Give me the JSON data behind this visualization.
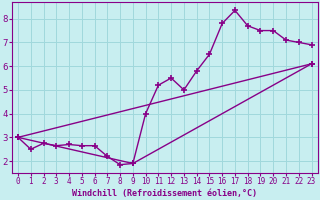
{
  "xlabel": "Windchill (Refroidissement éolien,°C)",
  "xlim": [
    -0.5,
    23.5
  ],
  "ylim": [
    1.5,
    8.7
  ],
  "xticks": [
    0,
    1,
    2,
    3,
    4,
    5,
    6,
    7,
    8,
    9,
    10,
    11,
    12,
    13,
    14,
    15,
    16,
    17,
    18,
    19,
    20,
    21,
    22,
    23
  ],
  "yticks": [
    2,
    3,
    4,
    5,
    6,
    7,
    8
  ],
  "bg_color": "#c8eef0",
  "line_color": "#880088",
  "grid_color": "#a0d8dc",
  "line1_x": [
    0,
    1,
    2,
    3,
    4,
    5,
    6,
    7,
    8,
    9,
    10,
    11,
    12,
    13,
    14,
    15,
    16,
    17,
    18,
    19,
    20,
    21,
    22,
    23
  ],
  "line1_y": [
    3.0,
    2.5,
    2.75,
    2.65,
    2.7,
    2.65,
    2.65,
    2.2,
    1.85,
    1.9,
    4.0,
    5.2,
    5.5,
    5.0,
    5.8,
    6.5,
    7.8,
    8.35,
    7.7,
    7.5,
    7.5,
    7.1,
    7.0,
    6.9
  ],
  "line2_x": [
    0,
    23
  ],
  "line2_y": [
    3.0,
    6.1
  ],
  "line3_x": [
    0,
    9,
    23
  ],
  "line3_y": [
    3.0,
    1.9,
    6.1
  ],
  "xlabel_fontsize": 6.0,
  "tick_fontsize_x": 5.5,
  "tick_fontsize_y": 6.5
}
